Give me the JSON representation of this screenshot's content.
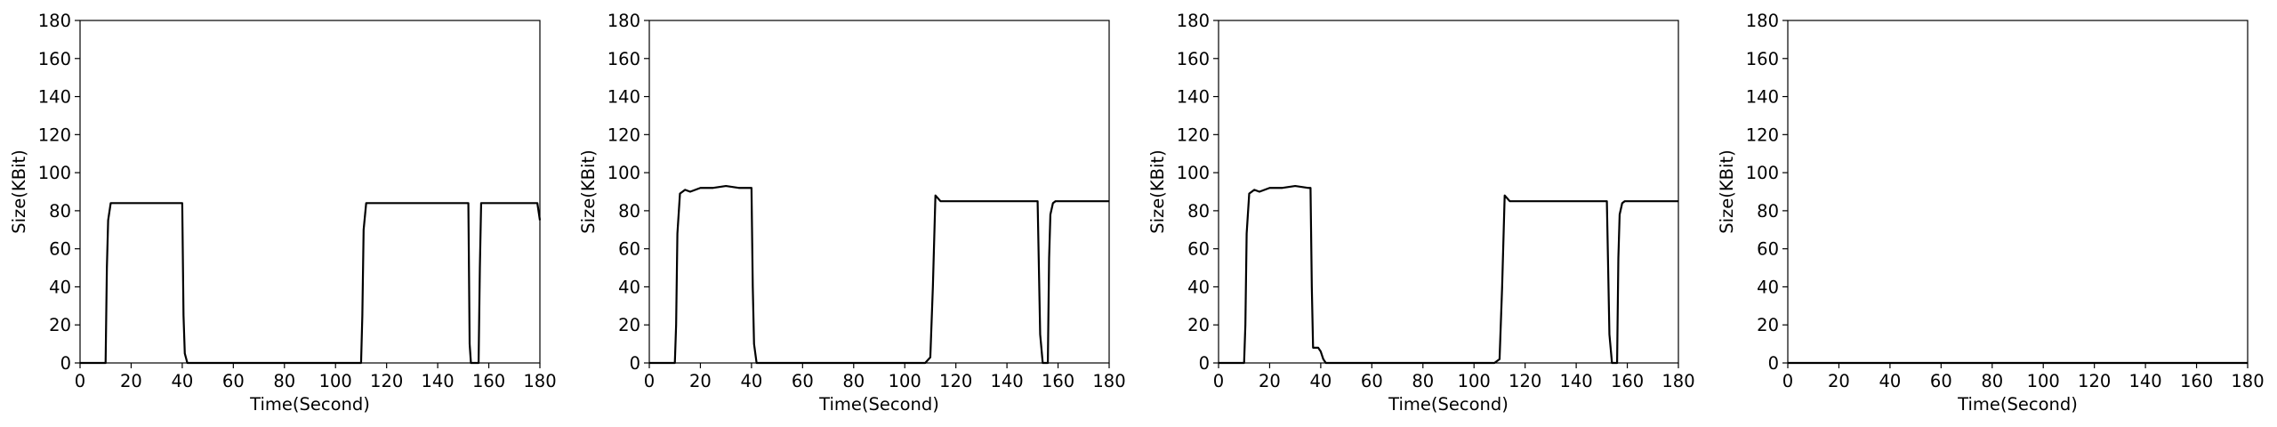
{
  "chart_data": [
    {
      "type": "line",
      "xlabel": "Time(Second)",
      "ylabel": "Size(KBit)",
      "xlim": [
        0,
        180
      ],
      "ylim": [
        0,
        180
      ],
      "xticks": [
        0,
        20,
        40,
        60,
        80,
        100,
        120,
        140,
        160,
        180
      ],
      "yticks": [
        0,
        20,
        40,
        60,
        80,
        100,
        120,
        140,
        160,
        180
      ],
      "grid": false,
      "color": "#000000",
      "series": [
        {
          "x": [
            0,
            10,
            10.5,
            11,
            12,
            20,
            30,
            40,
            40.5,
            41,
            42,
            50,
            60,
            80,
            100,
            110,
            110.5,
            111,
            112,
            120,
            130,
            140,
            152,
            152.5,
            153,
            154,
            155,
            156,
            156.5,
            157,
            158,
            170,
            178,
            179,
            180
          ],
          "y": [
            0,
            0,
            50,
            75,
            84,
            84,
            84,
            84,
            25,
            5,
            0,
            0,
            0,
            0,
            0,
            0,
            25,
            70,
            84,
            84,
            84,
            84,
            84,
            10,
            0,
            0,
            0,
            0,
            50,
            84,
            84,
            84,
            84,
            84,
            75
          ]
        }
      ]
    },
    {
      "type": "line",
      "xlabel": "Time(Second)",
      "ylabel": "Size(KBit)",
      "xlim": [
        0,
        180
      ],
      "ylim": [
        0,
        180
      ],
      "xticks": [
        0,
        20,
        40,
        60,
        80,
        100,
        120,
        140,
        160,
        180
      ],
      "yticks": [
        0,
        20,
        40,
        60,
        80,
        100,
        120,
        140,
        160,
        180
      ],
      "grid": false,
      "color": "#000000",
      "series": [
        {
          "x": [
            0,
            10,
            10.5,
            11,
            12,
            14,
            16,
            20,
            25,
            30,
            35,
            40,
            40.5,
            41,
            42,
            50,
            60,
            80,
            100,
            108,
            110,
            111,
            112,
            114,
            120,
            130,
            140,
            150,
            152,
            153,
            154,
            155,
            156,
            156.5,
            157,
            158,
            159,
            170,
            180
          ],
          "y": [
            0,
            0,
            20,
            68,
            89,
            91,
            90,
            92,
            92,
            93,
            92,
            92,
            40,
            10,
            0,
            0,
            0,
            0,
            0,
            0,
            3,
            40,
            88,
            85,
            85,
            85,
            85,
            85,
            85,
            15,
            0,
            0,
            0,
            55,
            78,
            84,
            85,
            85,
            85
          ]
        }
      ]
    },
    {
      "type": "line",
      "xlabel": "Time(Second)",
      "ylabel": "Size(KBit)",
      "xlim": [
        0,
        180
      ],
      "ylim": [
        0,
        180
      ],
      "xticks": [
        0,
        20,
        40,
        60,
        80,
        100,
        120,
        140,
        160,
        180
      ],
      "yticks": [
        0,
        20,
        40,
        60,
        80,
        100,
        120,
        140,
        160,
        180
      ],
      "grid": false,
      "color": "#000000",
      "series": [
        {
          "x": [
            0,
            10,
            10.5,
            11,
            12,
            14,
            16,
            20,
            25,
            30,
            35,
            36,
            36.5,
            37,
            39,
            40,
            41,
            42,
            45,
            60,
            80,
            100,
            108,
            110,
            111,
            112,
            114,
            120,
            130,
            140,
            150,
            152,
            153,
            154,
            155,
            156,
            156.5,
            157,
            158,
            159,
            170,
            180
          ],
          "y": [
            0,
            0,
            20,
            68,
            89,
            91,
            90,
            92,
            92,
            93,
            92,
            92,
            40,
            8,
            8,
            6,
            2,
            0,
            0,
            0,
            0,
            0,
            0,
            2,
            40,
            88,
            85,
            85,
            85,
            85,
            85,
            85,
            15,
            0,
            0,
            0,
            55,
            78,
            84,
            85,
            85,
            85
          ]
        }
      ]
    },
    {
      "type": "line",
      "xlabel": "Time(Second)",
      "ylabel": "Size(KBit)",
      "xlim": [
        0,
        180
      ],
      "ylim": [
        0,
        180
      ],
      "xticks": [
        0,
        20,
        40,
        60,
        80,
        100,
        120,
        140,
        160,
        180
      ],
      "yticks": [
        0,
        20,
        40,
        60,
        80,
        100,
        120,
        140,
        160,
        180
      ],
      "grid": false,
      "color": "#000000",
      "series": [
        {
          "x": [
            0,
            180
          ],
          "y": [
            0,
            0
          ]
        }
      ]
    }
  ]
}
